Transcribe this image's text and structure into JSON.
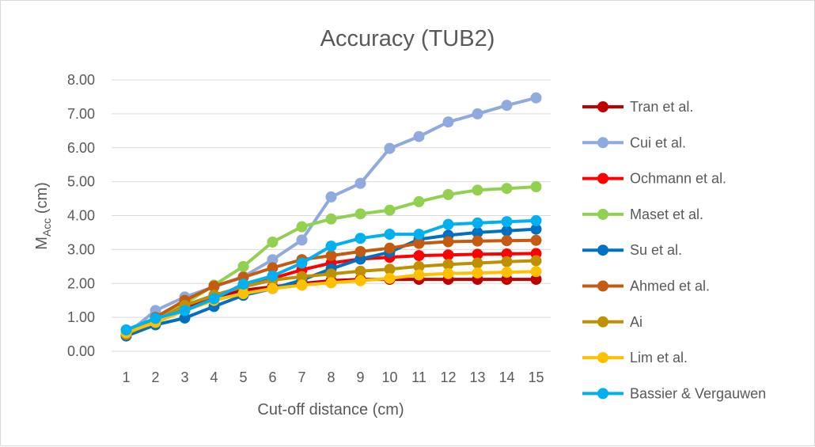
{
  "chart_data": {
    "type": "line",
    "title": "Accuracy (TUB2)",
    "xlabel": "Cut-off distance (cm)",
    "ylabel": {
      "main": "M",
      "sub": "Acc",
      "unit": " (cm)"
    },
    "x": [
      1,
      2,
      3,
      4,
      5,
      6,
      7,
      8,
      9,
      10,
      11,
      12,
      13,
      14,
      15
    ],
    "ylim": [
      0,
      8
    ],
    "yticks": [
      "0.00",
      "1.00",
      "2.00",
      "3.00",
      "4.00",
      "5.00",
      "6.00",
      "7.00",
      "8.00"
    ],
    "grid": true,
    "legend": "right",
    "series": [
      {
        "name": "Tran et al.",
        "color": "#c00000",
        "values": [
          0.5,
          0.98,
          1.3,
          1.6,
          1.8,
          1.9,
          2.0,
          2.08,
          2.12,
          2.12,
          2.12,
          2.12,
          2.12,
          2.12,
          2.12
        ]
      },
      {
        "name": "Cui et al.",
        "color": "#8faadc",
        "values": [
          0.5,
          1.2,
          1.6,
          1.9,
          2.2,
          2.7,
          3.28,
          4.55,
          4.95,
          5.98,
          6.33,
          6.76,
          7.0,
          7.25,
          7.47
        ]
      },
      {
        "name": "Ochmann et al.",
        "color": "#ff0000",
        "values": [
          0.5,
          0.95,
          1.35,
          1.65,
          1.9,
          2.15,
          2.4,
          2.6,
          2.72,
          2.77,
          2.82,
          2.84,
          2.86,
          2.87,
          2.88
        ]
      },
      {
        "name": "Maset et al.",
        "color": "#92d050",
        "values": [
          0.5,
          1.0,
          1.4,
          1.95,
          2.5,
          3.22,
          3.67,
          3.9,
          4.05,
          4.16,
          4.41,
          4.62,
          4.75,
          4.8,
          4.85
        ]
      },
      {
        "name": "Su et al.",
        "color": "#0070c0",
        "values": [
          0.45,
          0.78,
          0.98,
          1.32,
          1.65,
          1.85,
          2.1,
          2.43,
          2.72,
          2.92,
          3.3,
          3.42,
          3.5,
          3.55,
          3.6
        ]
      },
      {
        "name": "Ahmed et al.",
        "color": "#c55a11",
        "values": [
          0.5,
          1.0,
          1.5,
          1.92,
          2.18,
          2.46,
          2.7,
          2.82,
          2.94,
          3.04,
          3.18,
          3.23,
          3.25,
          3.26,
          3.27
        ]
      },
      {
        "name": "Ai",
        "color": "#bf9000",
        "values": [
          0.5,
          0.9,
          1.35,
          1.65,
          1.9,
          2.1,
          2.2,
          2.28,
          2.36,
          2.42,
          2.5,
          2.56,
          2.6,
          2.64,
          2.67
        ]
      },
      {
        "name": "Lim et al.",
        "color": "#ffc000",
        "values": [
          0.55,
          0.85,
          1.2,
          1.5,
          1.7,
          1.85,
          1.95,
          2.02,
          2.08,
          2.15,
          2.25,
          2.29,
          2.31,
          2.33,
          2.35
        ]
      },
      {
        "name": "Bassier & Vergauwen",
        "color": "#00b0f0",
        "values": [
          0.63,
          0.97,
          1.2,
          1.55,
          1.98,
          2.22,
          2.6,
          3.1,
          3.33,
          3.45,
          3.45,
          3.74,
          3.78,
          3.82,
          3.85
        ]
      }
    ]
  }
}
